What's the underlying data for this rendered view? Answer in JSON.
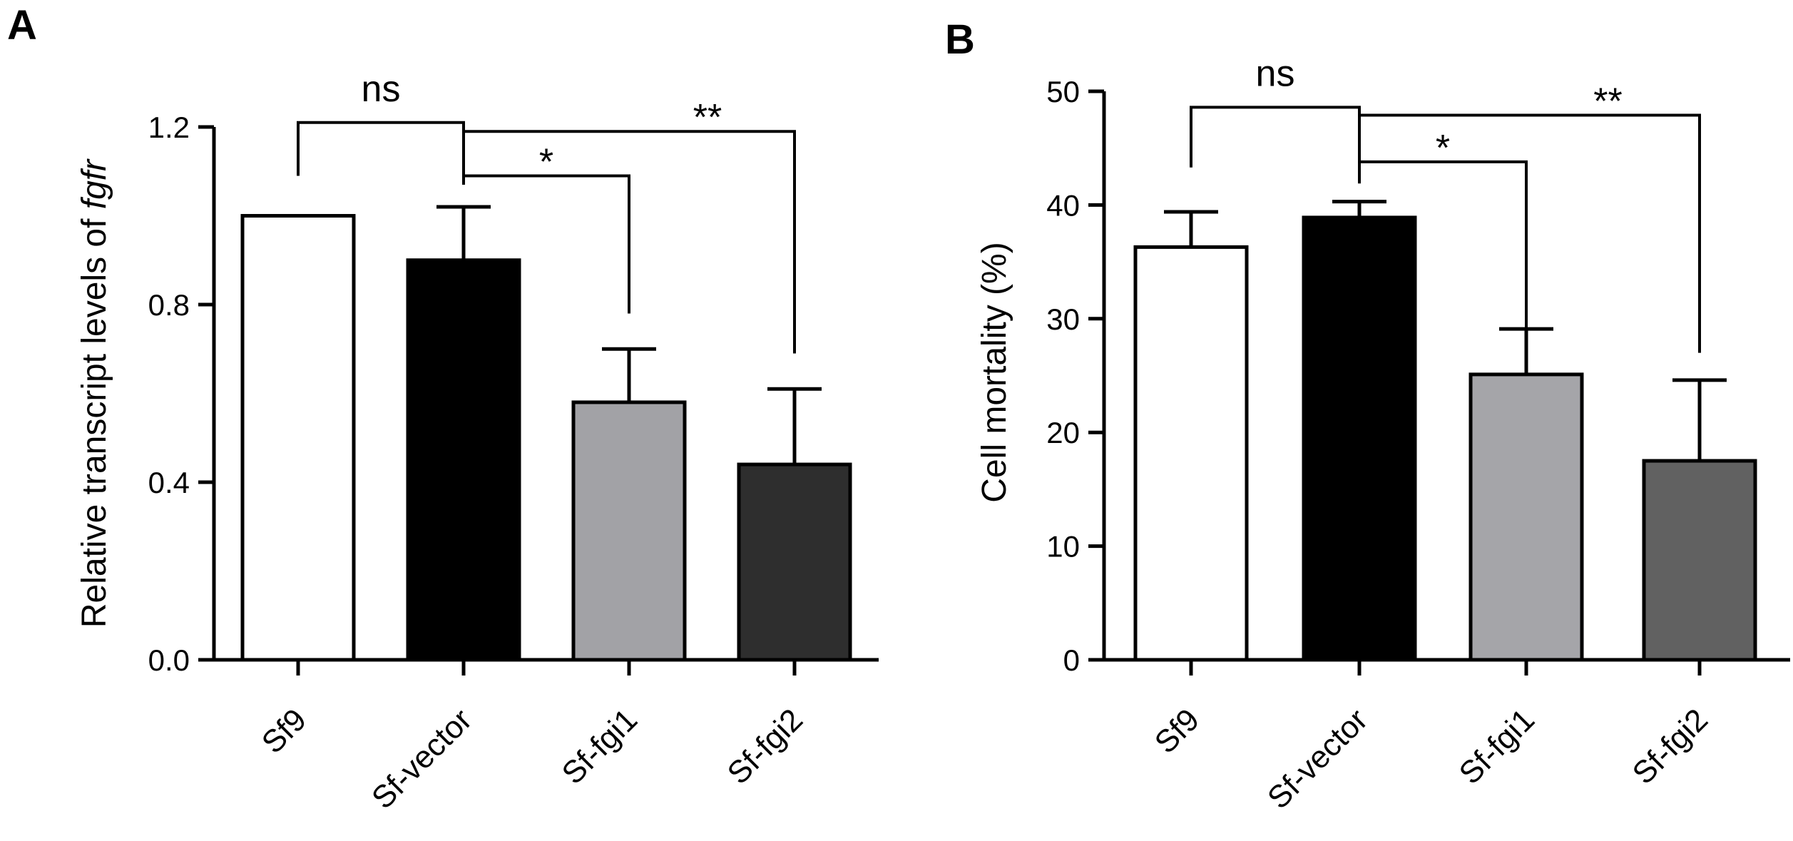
{
  "chart_data": [
    {
      "panel": "A",
      "type": "bar",
      "categories": [
        "Sf9",
        "Sf-vector",
        "Sf-fgi1",
        "Sf-fgi2"
      ],
      "values": [
        1.0,
        0.9,
        0.58,
        0.44
      ],
      "errors": [
        0.0,
        0.12,
        0.12,
        0.17
      ],
      "colors": [
        "#ffffff",
        "#000000",
        "#a2a2a6",
        "#2e2e2e"
      ],
      "ylabel_prefix": "Relative transcript levels of ",
      "ylabel_italic": "fgfr",
      "ylim": [
        0,
        1.2
      ],
      "yticks": [
        "0.0",
        "0.4",
        "0.8",
        "1.2"
      ],
      "ytick_values": [
        0,
        0.4,
        0.8,
        1.2
      ],
      "significance": [
        {
          "label": "ns",
          "from": 0,
          "to": 1,
          "level": 1.21,
          "drop_from": 1.09,
          "drop_to": 1.07
        },
        {
          "label": "*",
          "from": 1,
          "to": 2,
          "level": 1.09,
          "drop_from": 1.07,
          "drop_to": 0.78
        },
        {
          "label": "**",
          "from": 1,
          "to": 3,
          "level": 1.19,
          "drop_from": 1.19,
          "drop_to": 0.69
        }
      ]
    },
    {
      "panel": "B",
      "type": "bar",
      "categories": [
        "Sf9",
        "Sf-vector",
        "Sf-fgi1",
        "Sf-fgi2"
      ],
      "values": [
        36.3,
        38.9,
        25.1,
        17.5
      ],
      "errors": [
        3.1,
        1.4,
        4.0,
        7.1
      ],
      "colors": [
        "#ffffff",
        "#000000",
        "#a5a5a9",
        "#616161"
      ],
      "ylabel": "Cell mortality (%)",
      "ylim": [
        0,
        50
      ],
      "yticks": [
        "0",
        "10",
        "20",
        "30",
        "40",
        "50"
      ],
      "ytick_values": [
        0,
        10,
        20,
        30,
        40,
        50
      ],
      "significance": [
        {
          "label": "ns",
          "from": 0,
          "to": 1,
          "level": 48.6,
          "drop_from": 43.3,
          "drop_to": 41.9
        },
        {
          "label": "*",
          "from": 1,
          "to": 2,
          "level": 43.8,
          "drop_from": 41.9,
          "drop_to": 27.0
        },
        {
          "label": "**",
          "from": 1,
          "to": 3,
          "level": 47.9,
          "drop_from": 47.9,
          "drop_to": 27.0
        }
      ]
    }
  ]
}
